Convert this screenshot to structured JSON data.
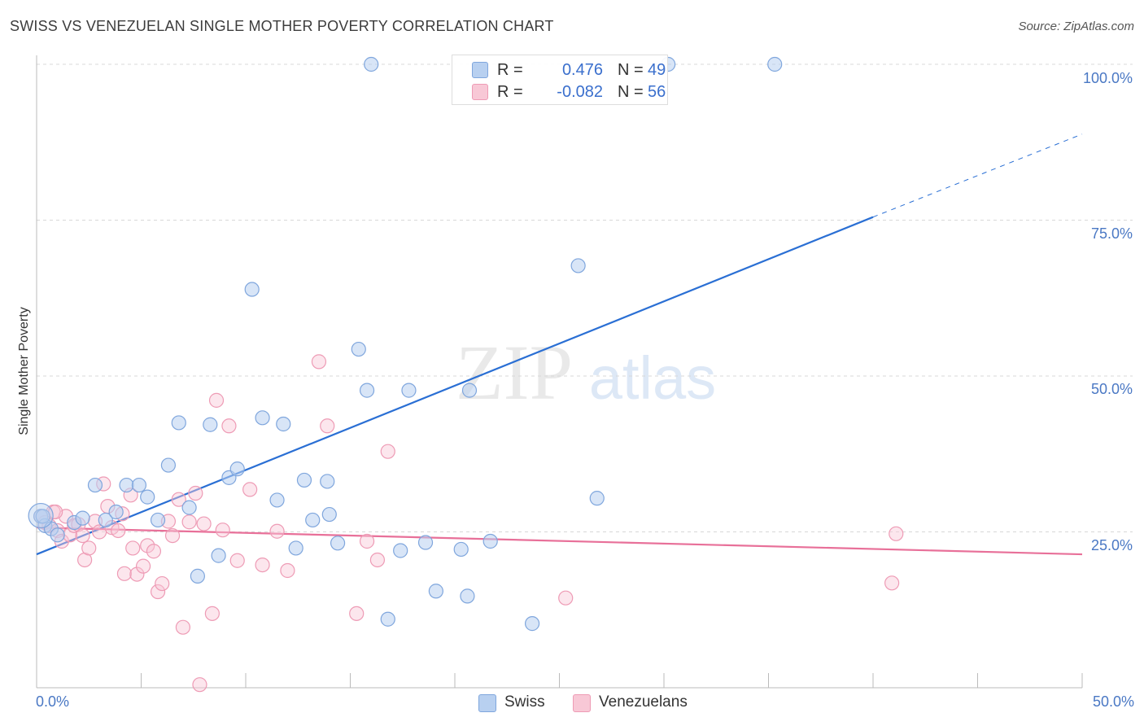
{
  "title": "SWISS VS VENEZUELAN SINGLE MOTHER POVERTY CORRELATION CHART",
  "source": "Source: ZipAtlas.com",
  "watermark": {
    "zip": "ZIP",
    "atlas": "atlas"
  },
  "colors": {
    "swiss_fill": "#b8d0f0",
    "swiss_stroke": "#7fa6dd",
    "swiss_line": "#2a6fd4",
    "ven_fill": "#f8c8d6",
    "ven_stroke": "#ee9bb5",
    "ven_line": "#e87099",
    "grid": "#d8d8d8",
    "tick_text": "#4a78c4"
  },
  "legend_top": [
    {
      "series": "swiss",
      "r_label": "R =",
      "r_value": "0.476",
      "n_label": "N =",
      "n_value": "49"
    },
    {
      "series": "venezuelans",
      "r_label": "R =",
      "r_value": "-0.082",
      "n_label": "N =",
      "n_value": "56"
    }
  ],
  "legend_bottom": [
    {
      "series": "swiss",
      "label": "Swiss"
    },
    {
      "series": "venezuelans",
      "label": "Venezuelans"
    }
  ],
  "chart_data": {
    "type": "scatter",
    "title": "SWISS VS VENEZUELAN SINGLE MOTHER POVERTY CORRELATION CHART",
    "xlabel": "",
    "ylabel": "Single Mother Poverty",
    "xlim": [
      0,
      50
    ],
    "ylim": [
      0,
      100
    ],
    "grid": true,
    "x_tick_labels": [
      "0.0%",
      "50.0%"
    ],
    "y_ticks": [
      {
        "value": 100,
        "label": "100.0%"
      },
      {
        "value": 75,
        "label": "75.0%"
      },
      {
        "value": 50,
        "label": "50.0%"
      },
      {
        "value": 25,
        "label": "25.0%"
      }
    ],
    "series": [
      {
        "name": "Swiss",
        "key": "swiss",
        "r": 0.476,
        "n": 49,
        "trend": {
          "x0": 0,
          "y0": 21.4,
          "x1": 40,
          "y1": 75.5,
          "dash_x1": 50,
          "dash_y1": 88.8
        },
        "points": [
          [
            0.2,
            27.5
          ],
          [
            0.4,
            26
          ],
          [
            0.7,
            25.5
          ],
          [
            1.0,
            24.5
          ],
          [
            1.8,
            26.5
          ],
          [
            2.2,
            27.2
          ],
          [
            2.8,
            32.5
          ],
          [
            3.3,
            26.9
          ],
          [
            3.8,
            28.2
          ],
          [
            4.3,
            32.5
          ],
          [
            4.9,
            32.5
          ],
          [
            5.3,
            30.6
          ],
          [
            5.8,
            26.9
          ],
          [
            6.3,
            35.7
          ],
          [
            6.8,
            42.5
          ],
          [
            7.3,
            28.9
          ],
          [
            7.7,
            17.9
          ],
          [
            8.3,
            42.2
          ],
          [
            8.7,
            21.2
          ],
          [
            9.2,
            33.7
          ],
          [
            9.6,
            35.1
          ],
          [
            10.3,
            63.9
          ],
          [
            10.8,
            43.3
          ],
          [
            11.5,
            30.1
          ],
          [
            11.8,
            42.3
          ],
          [
            12.4,
            22.4
          ],
          [
            12.8,
            33.3
          ],
          [
            13.2,
            26.9
          ],
          [
            13.9,
            33.1
          ],
          [
            14.0,
            27.8
          ],
          [
            14.4,
            23.2
          ],
          [
            15.4,
            54.3
          ],
          [
            15.8,
            47.7
          ],
          [
            16.0,
            100
          ],
          [
            16.8,
            11.0
          ],
          [
            17.4,
            22.0
          ],
          [
            17.8,
            47.7
          ],
          [
            18.6,
            23.3
          ],
          [
            19.1,
            15.5
          ],
          [
            20.3,
            22.2
          ],
          [
            20.6,
            14.7
          ],
          [
            20.7,
            47.7
          ],
          [
            21.7,
            23.5
          ],
          [
            23.7,
            10.3
          ],
          [
            25.9,
            67.7
          ],
          [
            26.8,
            30.4
          ],
          [
            30.2,
            100
          ],
          [
            35.3,
            100
          ],
          [
            0.3,
            27.5
          ]
        ]
      },
      {
        "name": "Venezuelans",
        "key": "venezuelans",
        "r": -0.082,
        "n": 56,
        "trend": {
          "x0": 0,
          "y0": 25.7,
          "x1": 50,
          "y1": 21.4
        },
        "points": [
          [
            0.2,
            27.5
          ],
          [
            0.4,
            26.5
          ],
          [
            0.6,
            26
          ],
          [
            0.8,
            28.2
          ],
          [
            1.0,
            25.2
          ],
          [
            1.2,
            23.5
          ],
          [
            1.4,
            27.5
          ],
          [
            1.6,
            24.5
          ],
          [
            1.8,
            26
          ],
          [
            2.0,
            26.2
          ],
          [
            2.2,
            24.4
          ],
          [
            2.3,
            20.5
          ],
          [
            2.5,
            22.4
          ],
          [
            2.8,
            26.7
          ],
          [
            3.0,
            25.0
          ],
          [
            3.2,
            32.7
          ],
          [
            3.4,
            29.1
          ],
          [
            3.6,
            25.7
          ],
          [
            3.9,
            25.2
          ],
          [
            4.1,
            27.9
          ],
          [
            4.2,
            18.3
          ],
          [
            4.5,
            30.9
          ],
          [
            4.6,
            22.4
          ],
          [
            4.8,
            18.2
          ],
          [
            5.1,
            19.5
          ],
          [
            5.3,
            22.8
          ],
          [
            5.6,
            21.9
          ],
          [
            5.8,
            15.4
          ],
          [
            6.0,
            16.7
          ],
          [
            6.3,
            26.7
          ],
          [
            6.5,
            24.4
          ],
          [
            6.8,
            30.2
          ],
          [
            7.0,
            9.7
          ],
          [
            7.3,
            26.6
          ],
          [
            7.6,
            31.2
          ],
          [
            7.8,
            0.5
          ],
          [
            8.0,
            26.3
          ],
          [
            8.4,
            11.9
          ],
          [
            8.6,
            46.1
          ],
          [
            8.9,
            25.3
          ],
          [
            9.2,
            42.0
          ],
          [
            9.6,
            20.4
          ],
          [
            10.2,
            31.8
          ],
          [
            10.8,
            19.7
          ],
          [
            11.5,
            25.1
          ],
          [
            12.0,
            18.8
          ],
          [
            13.5,
            52.3
          ],
          [
            13.9,
            42.0
          ],
          [
            15.3,
            11.9
          ],
          [
            15.8,
            23.5
          ],
          [
            16.3,
            20.5
          ],
          [
            16.8,
            37.9
          ],
          [
            25.3,
            14.4
          ],
          [
            40.9,
            16.8
          ],
          [
            41.1,
            24.7
          ],
          [
            0.9,
            28.2
          ]
        ]
      }
    ]
  }
}
